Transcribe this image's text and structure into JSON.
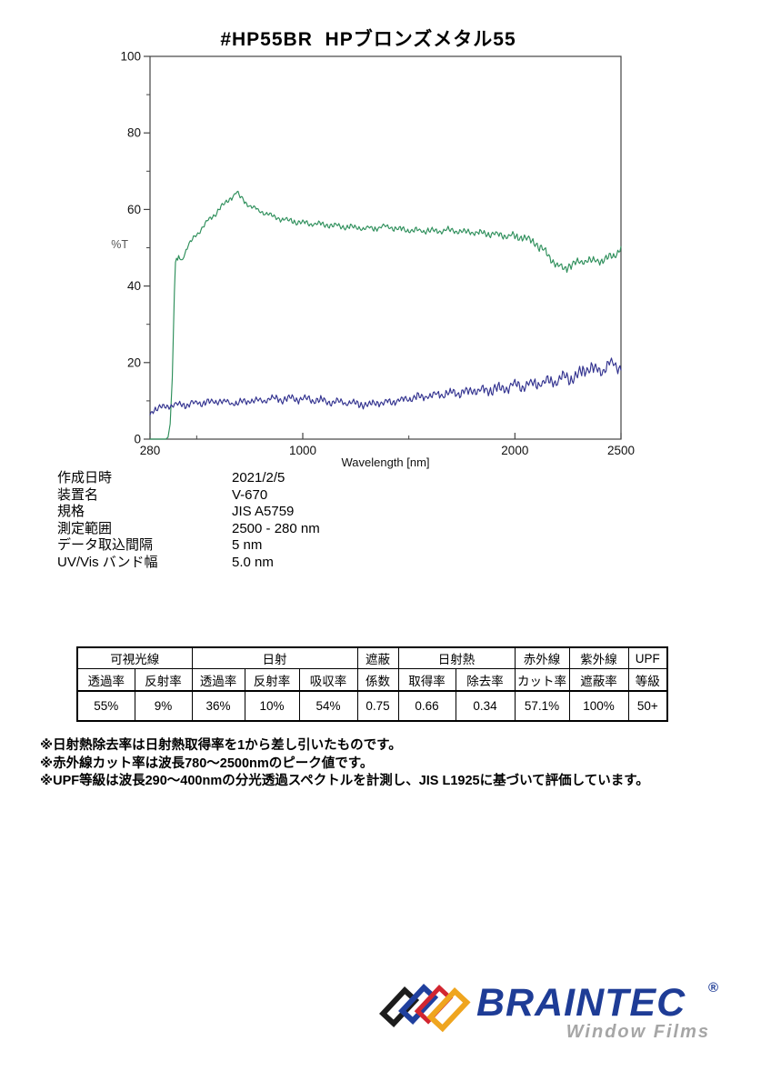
{
  "page": {
    "title": "#HP55BR  HPブロンズメタル55"
  },
  "measurement_info": {
    "rows": [
      {
        "label": "作成日時",
        "value": "2021/2/5"
      },
      {
        "label": "装置名",
        "value": "V-670"
      },
      {
        "label": "規格",
        "value": "JIS A5759"
      },
      {
        "label": "測定範囲",
        "value": "2500 - 280 nm"
      },
      {
        "label": "データ取込間隔",
        "value": "5 nm"
      },
      {
        "label": "UV/Vis バンド幅",
        "value": "5.0 nm"
      }
    ]
  },
  "results_table": {
    "group_row": [
      "可視光線",
      "日射",
      "遮蔽",
      "日射熱",
      "赤外線",
      "紫外線",
      "UPF"
    ],
    "sub_row": [
      "透過率",
      "反射率",
      "透過率",
      "反射率",
      "吸収率",
      "係数",
      "取得率",
      "除去率",
      "カット率",
      "遮蔽率",
      "等級"
    ],
    "values": [
      "55%",
      "9%",
      "36%",
      "10%",
      "54%",
      "0.75",
      "0.66",
      "0.34",
      "57.1%",
      "100%",
      "50+"
    ]
  },
  "notes": {
    "lines": [
      "※日射熱除去率は日射熱取得率を1から差し引いたものです。",
      "※赤外線カット率は波長780～2500nmのピーク値です。",
      "※UPF等級は波長290～400nmの分光透過スペクトルを計測し、JIS L1925に基づいて評価しています。"
    ]
  },
  "logo": {
    "brand": "BRAINTEC",
    "registered": "®",
    "tagline": "Window Films",
    "brand_color": "#1e3c96",
    "tagline_color": "#a6a6a6",
    "diamond_colors": {
      "black": "#1c1c1c",
      "blue": "#20409e",
      "red": "#d22630",
      "yellow": "#efa51f"
    }
  },
  "chart_data": {
    "type": "line",
    "title": "",
    "xlabel": "Wavelength [nm]",
    "ylabel": "%T",
    "xlim": [
      280,
      2500
    ],
    "ylim": [
      0,
      100
    ],
    "grid": false,
    "legend": "none",
    "sample_step_nm": 5,
    "x_major_ticks": [
      {
        "v": 280,
        "label": "280"
      },
      {
        "v": 1000,
        "label": "1000"
      },
      {
        "v": 2000,
        "label": "2000"
      },
      {
        "v": 2500,
        "label": "2500"
      }
    ],
    "x_minor_ticks": [
      500,
      1500
    ],
    "y_major_ticks": [
      {
        "v": 0,
        "label": "0"
      },
      {
        "v": 20,
        "label": "20"
      },
      {
        "v": 40,
        "label": "40"
      },
      {
        "v": 60,
        "label": "60"
      },
      {
        "v": 80,
        "label": "80"
      },
      {
        "v": 100,
        "label": "100"
      }
    ],
    "y_minor_ticks": [
      10,
      30,
      50,
      70,
      90
    ],
    "series": [
      {
        "name": "transmittance",
        "color": "#2e8f5b",
        "keypoints": [
          [
            280,
            0
          ],
          [
            355,
            0
          ],
          [
            365,
            0.5
          ],
          [
            375,
            4
          ],
          [
            385,
            16
          ],
          [
            392,
            32
          ],
          [
            398,
            45
          ],
          [
            403,
            48
          ],
          [
            408,
            46
          ],
          [
            415,
            48
          ],
          [
            428,
            46.5
          ],
          [
            440,
            48
          ],
          [
            455,
            50
          ],
          [
            470,
            51.5
          ],
          [
            500,
            53.5
          ],
          [
            530,
            55.5
          ],
          [
            560,
            57.5
          ],
          [
            590,
            59
          ],
          [
            620,
            61
          ],
          [
            650,
            62.5
          ],
          [
            670,
            63.5
          ],
          [
            690,
            64.5
          ],
          [
            705,
            63
          ],
          [
            720,
            62.5
          ],
          [
            740,
            61.5
          ],
          [
            760,
            60.5
          ],
          [
            800,
            59.5
          ],
          [
            850,
            58.5
          ],
          [
            900,
            57.5
          ],
          [
            950,
            57
          ],
          [
            1000,
            56.5
          ],
          [
            1100,
            56
          ],
          [
            1200,
            55.5
          ],
          [
            1300,
            55
          ],
          [
            1400,
            55.5
          ],
          [
            1500,
            54.5
          ],
          [
            1600,
            54.5
          ],
          [
            1700,
            54.5
          ],
          [
            1800,
            54
          ],
          [
            1900,
            53.5
          ],
          [
            2000,
            53
          ],
          [
            2050,
            52.5
          ],
          [
            2100,
            51
          ],
          [
            2150,
            48.5
          ],
          [
            2200,
            45.5
          ],
          [
            2230,
            44.5
          ],
          [
            2260,
            45.5
          ],
          [
            2300,
            46
          ],
          [
            2340,
            47
          ],
          [
            2380,
            46.5
          ],
          [
            2420,
            47
          ],
          [
            2460,
            47.5
          ],
          [
            2500,
            50
          ]
        ],
        "noise_amp": [
          [
            280,
            0
          ],
          [
            400,
            0
          ],
          [
            420,
            0.4
          ],
          [
            500,
            0.8
          ],
          [
            1000,
            0.9
          ],
          [
            1800,
            1.0
          ],
          [
            2100,
            1.4
          ],
          [
            2500,
            1.6
          ]
        ],
        "seed": 11
      },
      {
        "name": "reflectance",
        "color": "#32328f",
        "keypoints": [
          [
            280,
            6.5
          ],
          [
            300,
            8
          ],
          [
            330,
            8
          ],
          [
            360,
            8.5
          ],
          [
            400,
            9
          ],
          [
            450,
            9
          ],
          [
            500,
            9.5
          ],
          [
            550,
            9.5
          ],
          [
            600,
            10
          ],
          [
            650,
            9.5
          ],
          [
            700,
            9.5
          ],
          [
            750,
            10
          ],
          [
            800,
            10
          ],
          [
            850,
            10.5
          ],
          [
            900,
            10.5
          ],
          [
            1000,
            10.5
          ],
          [
            1100,
            10
          ],
          [
            1200,
            9.5
          ],
          [
            1300,
            9
          ],
          [
            1350,
            9.5
          ],
          [
            1400,
            9.5
          ],
          [
            1450,
            10
          ],
          [
            1500,
            10.5
          ],
          [
            1550,
            11
          ],
          [
            1600,
            11.5
          ],
          [
            1700,
            12
          ],
          [
            1800,
            12.5
          ],
          [
            1900,
            13
          ],
          [
            2000,
            14
          ],
          [
            2100,
            14.5
          ],
          [
            2200,
            15.5
          ],
          [
            2250,
            16
          ],
          [
            2300,
            17
          ],
          [
            2350,
            19
          ],
          [
            2400,
            17.5
          ],
          [
            2450,
            19.5
          ],
          [
            2500,
            18.5
          ]
        ],
        "noise_amp": [
          [
            280,
            1.0
          ],
          [
            500,
            1.1
          ],
          [
            1000,
            1.2
          ],
          [
            1500,
            1.3
          ],
          [
            1800,
            1.6
          ],
          [
            2100,
            1.9
          ],
          [
            2300,
            2.2
          ],
          [
            2500,
            2.3
          ]
        ],
        "seed": 77
      }
    ]
  }
}
